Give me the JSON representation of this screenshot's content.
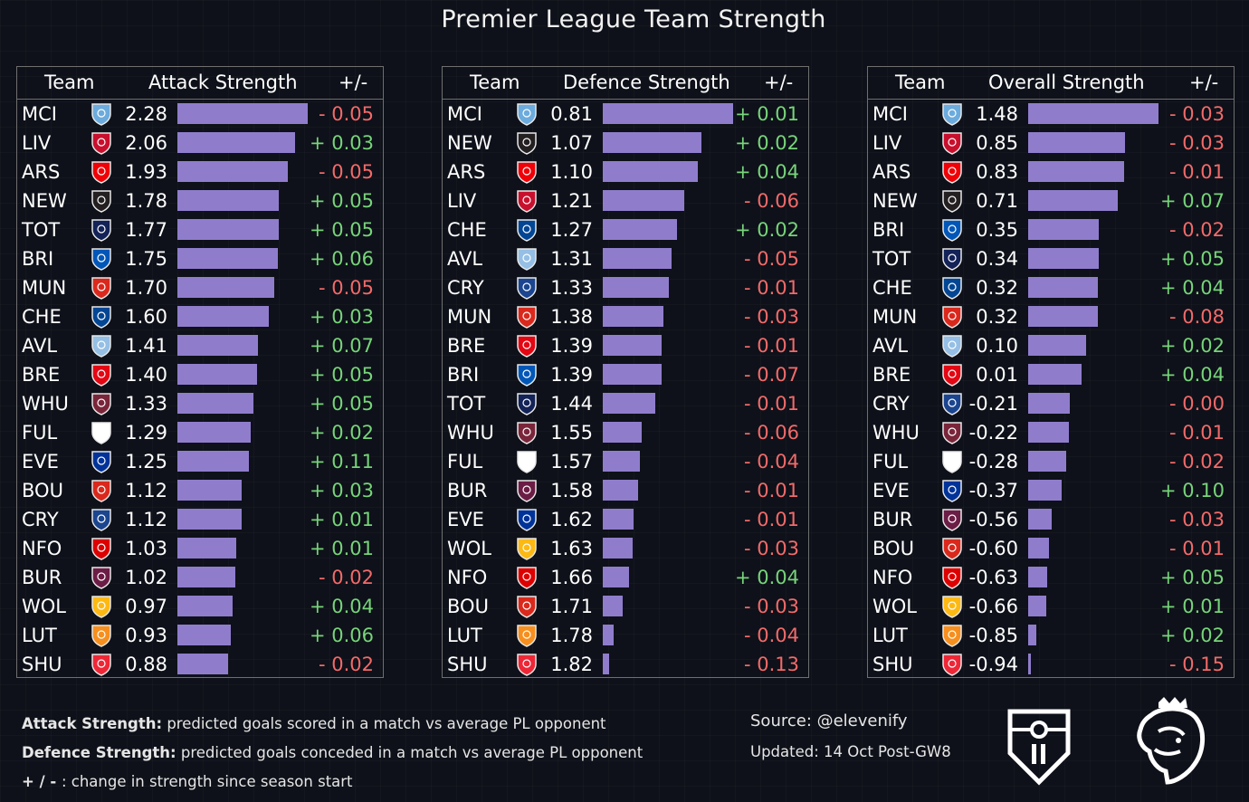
{
  "title": "Premier League Team Strength",
  "chart_data": [
    {
      "type": "bar",
      "orientation": "horizontal",
      "headers": {
        "team": "Team",
        "metric": "Attack Strength",
        "change": "+/-"
      },
      "xlim": [
        0,
        2.28
      ],
      "rows": [
        {
          "team": "MCI",
          "value": "2.28",
          "change": "- 0.05"
        },
        {
          "team": "LIV",
          "value": "2.06",
          "change": "+ 0.03"
        },
        {
          "team": "ARS",
          "value": "1.93",
          "change": "- 0.05"
        },
        {
          "team": "NEW",
          "value": "1.78",
          "change": "+ 0.05"
        },
        {
          "team": "TOT",
          "value": "1.77",
          "change": "+ 0.05"
        },
        {
          "team": "BRI",
          "value": "1.75",
          "change": "+ 0.06"
        },
        {
          "team": "MUN",
          "value": "1.70",
          "change": "- 0.05"
        },
        {
          "team": "CHE",
          "value": "1.60",
          "change": "+ 0.03"
        },
        {
          "team": "AVL",
          "value": "1.41",
          "change": "+ 0.07"
        },
        {
          "team": "BRE",
          "value": "1.40",
          "change": "+ 0.05"
        },
        {
          "team": "WHU",
          "value": "1.33",
          "change": "+ 0.05"
        },
        {
          "team": "FUL",
          "value": "1.29",
          "change": "+ 0.02"
        },
        {
          "team": "EVE",
          "value": "1.25",
          "change": "+ 0.11"
        },
        {
          "team": "BOU",
          "value": "1.12",
          "change": "+ 0.03"
        },
        {
          "team": "CRY",
          "value": "1.12",
          "change": "+ 0.01"
        },
        {
          "team": "NFO",
          "value": "1.03",
          "change": "+ 0.01"
        },
        {
          "team": "BUR",
          "value": "1.02",
          "change": "- 0.02"
        },
        {
          "team": "WOL",
          "value": "0.97",
          "change": "+ 0.04"
        },
        {
          "team": "LUT",
          "value": "0.93",
          "change": "+ 0.06"
        },
        {
          "team": "SHU",
          "value": "0.88",
          "change": "- 0.02"
        }
      ]
    },
    {
      "type": "bar",
      "orientation": "horizontal",
      "headers": {
        "team": "Team",
        "metric": "Defence Strength",
        "change": "+/-"
      },
      "xlim": [
        1.87,
        0.81
      ],
      "rows": [
        {
          "team": "MCI",
          "value": "0.81",
          "change": "+ 0.01"
        },
        {
          "team": "NEW",
          "value": "1.07",
          "change": "+ 0.02"
        },
        {
          "team": "ARS",
          "value": "1.10",
          "change": "+ 0.04"
        },
        {
          "team": "LIV",
          "value": "1.21",
          "change": "- 0.06"
        },
        {
          "team": "CHE",
          "value": "1.27",
          "change": "+ 0.02"
        },
        {
          "team": "AVL",
          "value": "1.31",
          "change": "- 0.05"
        },
        {
          "team": "CRY",
          "value": "1.33",
          "change": "- 0.01"
        },
        {
          "team": "MUN",
          "value": "1.38",
          "change": "- 0.03"
        },
        {
          "team": "BRE",
          "value": "1.39",
          "change": "- 0.01"
        },
        {
          "team": "BRI",
          "value": "1.39",
          "change": "- 0.07"
        },
        {
          "team": "TOT",
          "value": "1.44",
          "change": "- 0.01"
        },
        {
          "team": "WHU",
          "value": "1.55",
          "change": "- 0.06"
        },
        {
          "team": "FUL",
          "value": "1.57",
          "change": "- 0.04"
        },
        {
          "team": "BUR",
          "value": "1.58",
          "change": "- 0.01"
        },
        {
          "team": "EVE",
          "value": "1.62",
          "change": "- 0.01"
        },
        {
          "team": "WOL",
          "value": "1.63",
          "change": "- 0.03"
        },
        {
          "team": "NFO",
          "value": "1.66",
          "change": "+ 0.04"
        },
        {
          "team": "BOU",
          "value": "1.71",
          "change": "- 0.03"
        },
        {
          "team": "LUT",
          "value": "1.78",
          "change": "- 0.04"
        },
        {
          "team": "SHU",
          "value": "1.82",
          "change": "- 0.13"
        }
      ]
    },
    {
      "type": "bar",
      "orientation": "horizontal",
      "headers": {
        "team": "Team",
        "metric": "Overall Strength",
        "change": "+/-"
      },
      "xlim": [
        -1.0,
        1.48
      ],
      "rows": [
        {
          "team": "MCI",
          "value": "1.48",
          "change": "- 0.03"
        },
        {
          "team": "LIV",
          "value": "0.85",
          "change": "- 0.03"
        },
        {
          "team": "ARS",
          "value": "0.83",
          "change": "- 0.01"
        },
        {
          "team": "NEW",
          "value": "0.71",
          "change": "+ 0.07"
        },
        {
          "team": "BRI",
          "value": "0.35",
          "change": "- 0.02"
        },
        {
          "team": "TOT",
          "value": "0.34",
          "change": "+ 0.05"
        },
        {
          "team": "CHE",
          "value": "0.32",
          "change": "+ 0.04"
        },
        {
          "team": "MUN",
          "value": "0.32",
          "change": "- 0.08"
        },
        {
          "team": "AVL",
          "value": "0.10",
          "change": "+ 0.02"
        },
        {
          "team": "BRE",
          "value": "0.01",
          "change": "+ 0.04"
        },
        {
          "team": "CRY",
          "value": "-0.21",
          "change": "- 0.00"
        },
        {
          "team": "WHU",
          "value": "-0.22",
          "change": "- 0.01"
        },
        {
          "team": "FUL",
          "value": "-0.28",
          "change": "- 0.02"
        },
        {
          "team": "EVE",
          "value": "-0.37",
          "change": "+ 0.10"
        },
        {
          "team": "BUR",
          "value": "-0.56",
          "change": "- 0.03"
        },
        {
          "team": "BOU",
          "value": "-0.60",
          "change": "- 0.01"
        },
        {
          "team": "NFO",
          "value": "-0.63",
          "change": "+ 0.05"
        },
        {
          "team": "WOL",
          "value": "-0.66",
          "change": "+ 0.01"
        },
        {
          "team": "LUT",
          "value": "-0.85",
          "change": "+ 0.02"
        },
        {
          "team": "SHU",
          "value": "-0.94",
          "change": "- 0.15"
        }
      ]
    }
  ],
  "notes": {
    "attack_label": "Attack Strength:",
    "attack_text": " predicted goals scored in a match vs average PL opponent",
    "defence_label": "Defence Strength:",
    "defence_text": " predicted goals conceded in a match vs average PL opponent",
    "change_label": "+ / - ",
    "change_text": " : change in strength since season start"
  },
  "source": "Source: @elevenify",
  "updated": "Updated: 14 Oct Post-GW8",
  "crest_colors": {
    "MCI": "#6cabdd",
    "LIV": "#c8102e",
    "ARS": "#ef0107",
    "NEW": "#241f20",
    "TOT": "#132257",
    "BRI": "#0057b8",
    "MUN": "#da291c",
    "CHE": "#034694",
    "AVL": "#95bfe5",
    "BRE": "#e30613",
    "WHU": "#7a263a",
    "FUL": "#ffffff",
    "EVE": "#003399",
    "BOU": "#da291c",
    "CRY": "#1b458f",
    "NFO": "#dd0000",
    "BUR": "#6c1d45",
    "WOL": "#fdb913",
    "LUT": "#f78f1e",
    "SHU": "#ee2737"
  },
  "colors": {
    "bar": "#8f7dcc",
    "positive": "#77d47a",
    "negative": "#f26a6a"
  },
  "logos": [
    "elevenify-shield-logo",
    "premier-league-lion-logo"
  ]
}
